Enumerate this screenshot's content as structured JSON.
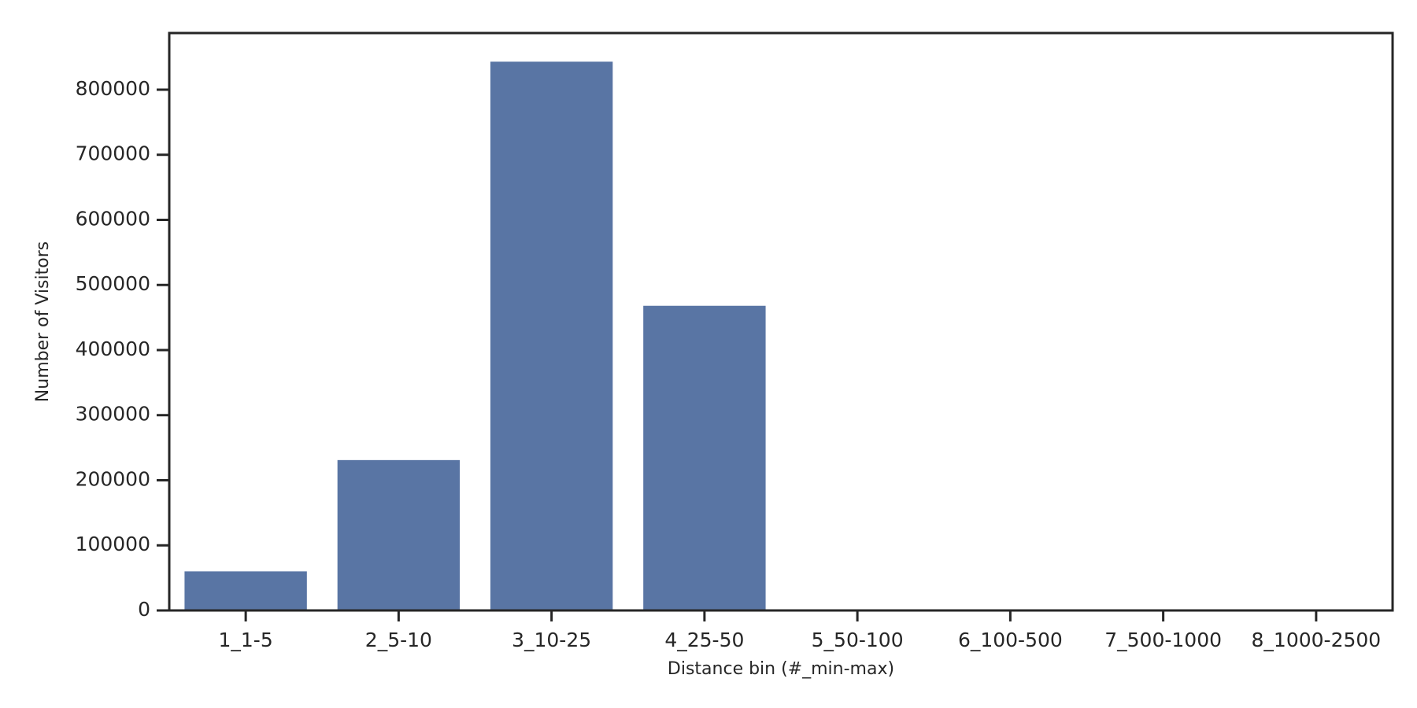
{
  "chart_data": {
    "type": "bar",
    "x_label": "Distance bin (#_min-max)",
    "y_label": "Number of Visitors",
    "categories": [
      "1_1-5",
      "2_5-10",
      "3_10-25",
      "4_25-50",
      "5_50-100",
      "6_100-500",
      "7_500-1000",
      "8_1000-2500"
    ],
    "values": [
      60000,
      231000,
      843000,
      468000,
      0,
      0,
      0,
      0
    ],
    "color": "#5975a4",
    "ylim": [
      0,
      887000
    ],
    "yticks": [
      0,
      100000,
      200000,
      300000,
      400000,
      500000,
      600000,
      700000,
      800000
    ],
    "grid": false
  }
}
